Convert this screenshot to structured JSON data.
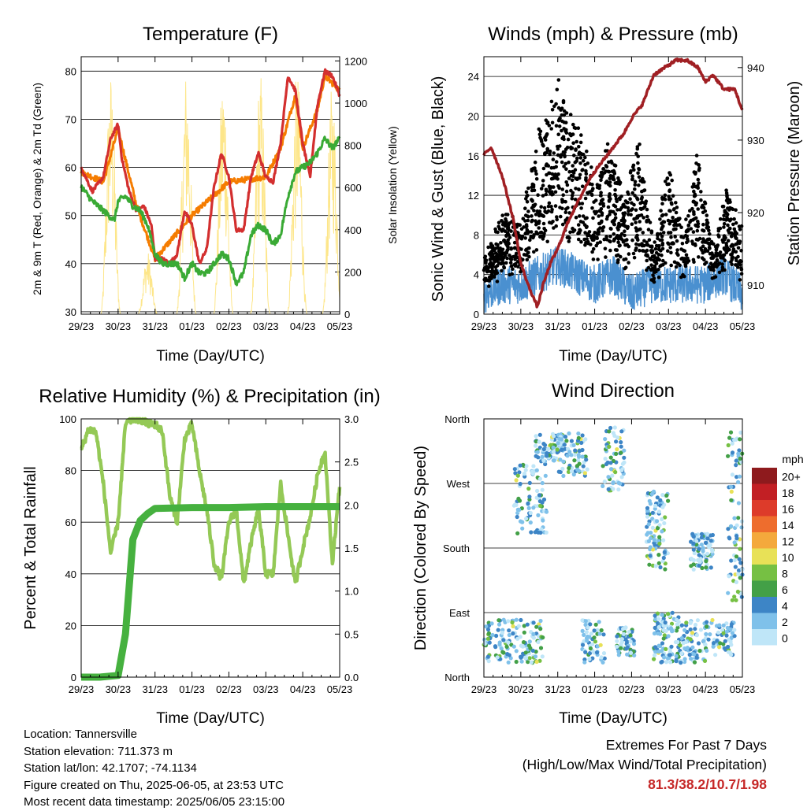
{
  "x_ticks": [
    "29/23",
    "30/23",
    "31/23",
    "01/23",
    "02/23",
    "03/23",
    "04/23",
    "05/23"
  ],
  "chart_data": [
    {
      "type": "line",
      "title": "Temperature (F)",
      "xlabel": "Time (Day/UTC)",
      "ylabel": "2m & 9m T (Red, Orange) & 2m Td (Green)",
      "ylabel_right": "Solar Insolation (Yellow)",
      "ylim": [
        29.5,
        83
      ],
      "yticks": [
        30,
        40,
        50,
        60,
        70,
        80
      ],
      "ylim_right": [
        0,
        1220
      ],
      "yticks_right": [
        0,
        200,
        400,
        600,
        800,
        1000,
        1200
      ],
      "grid": true,
      "series": [
        {
          "name": "2m T",
          "color": "#d32f2f",
          "x": [
            0,
            0.3,
            0.6,
            0.8,
            1.0,
            1.1,
            1.3,
            1.5,
            1.7,
            1.9,
            2.0,
            2.2,
            2.4,
            2.6,
            2.8,
            3.0,
            3.2,
            3.4,
            3.6,
            3.8,
            4.0,
            4.2,
            4.4,
            4.6,
            4.8,
            5.0,
            5.2,
            5.4,
            5.6,
            5.8,
            6.0,
            6.2,
            6.4,
            6.6,
            6.8,
            7.0
          ],
          "values": [
            60,
            55,
            58,
            66,
            69,
            62,
            55,
            51,
            52,
            48,
            41,
            41,
            40,
            42,
            51,
            48,
            40,
            43,
            56,
            63,
            58,
            47,
            47,
            58,
            63,
            58,
            57,
            65,
            79,
            76,
            65,
            58,
            73,
            80,
            79,
            75
          ]
        },
        {
          "name": "9m T",
          "color": "#f57c00",
          "x": [
            0,
            0.6,
            1.0,
            1.5,
            2.0,
            3.0,
            4.0,
            5.0,
            5.4,
            5.8,
            6.0,
            6.4,
            6.6,
            7.0
          ],
          "values": [
            59,
            57,
            68,
            52,
            41,
            50,
            57,
            58,
            64,
            75,
            64,
            72,
            79,
            76
          ]
        },
        {
          "name": "2m Td",
          "color": "#3aaa35",
          "x": [
            0,
            0.3,
            0.6,
            0.9,
            1.0,
            1.2,
            1.4,
            1.6,
            1.8,
            2.0,
            2.2,
            2.4,
            2.6,
            2.8,
            3.0,
            3.2,
            3.4,
            3.6,
            3.8,
            4.0,
            4.2,
            4.4,
            4.6,
            4.8,
            5.0,
            5.2,
            5.4,
            5.6,
            5.8,
            6.0,
            6.2,
            6.4,
            6.6,
            6.8,
            7.0
          ],
          "values": [
            56,
            53,
            51,
            49,
            53,
            54,
            52,
            51,
            48,
            42,
            40,
            40,
            40,
            37,
            40,
            38,
            38,
            40,
            42,
            41,
            36,
            38,
            46,
            48,
            47,
            44,
            46,
            54,
            59,
            60,
            61,
            63,
            66,
            64,
            66
          ]
        },
        {
          "name": "Solar Insolation",
          "color": "#fde68a",
          "axis": "right",
          "peaks": [
            {
              "x": 0.8,
              "v": 1160
            },
            {
              "x": 1.8,
              "v": 300
            },
            {
              "x": 2.85,
              "v": 1180
            },
            {
              "x": 3.85,
              "v": 1180
            },
            {
              "x": 4.85,
              "v": 1170
            },
            {
              "x": 5.85,
              "v": 1170
            },
            {
              "x": 6.8,
              "v": 1100
            }
          ]
        }
      ]
    },
    {
      "type": "scatter",
      "title": "Winds (mph) & Pressure (mb)",
      "xlabel": "Time (Day/UTC)",
      "ylabel": "Sonic Wind & Gust (Blue, Black)",
      "ylabel_right": "Station Pressure (Maroon)",
      "ylim": [
        0,
        26
      ],
      "yticks": [
        0,
        4,
        8,
        12,
        16,
        20,
        24
      ],
      "ylim_right": [
        906.0,
        941.5
      ],
      "yticks_right": [
        910,
        920,
        930,
        940
      ],
      "grid": true,
      "series": [
        {
          "name": "Sonic Wind",
          "color": "#4a90d0",
          "x": [
            0,
            0.5,
            1.0,
            1.5,
            2.0,
            2.5,
            3.0,
            3.5,
            4.0,
            4.5,
            5.0,
            5.5,
            6.0,
            6.5,
            7.0
          ],
          "values": [
            2,
            3,
            3,
            4,
            5,
            4,
            3,
            4,
            2,
            3,
            3,
            3,
            3,
            4,
            2
          ]
        },
        {
          "name": "Gust",
          "color": "#000000",
          "x": [
            0.2,
            0.6,
            1.0,
            1.5,
            2.0,
            2.3,
            2.7,
            3.0,
            3.4,
            3.8,
            4.2,
            4.6,
            5.0,
            5.4,
            5.8,
            6.2,
            6.6,
            6.9
          ],
          "values": [
            4,
            8,
            6,
            15,
            20,
            16,
            14,
            10,
            14,
            8,
            14,
            4,
            12,
            5,
            13,
            4,
            10,
            6
          ]
        },
        {
          "name": "Station Pressure",
          "color": "#a01f23",
          "axis": "right",
          "x": [
            0,
            0.2,
            0.5,
            0.8,
            1.0,
            1.2,
            1.45,
            1.6,
            1.8,
            2.0,
            2.3,
            2.6,
            2.9,
            3.2,
            3.5,
            3.8,
            4.0,
            4.3,
            4.6,
            4.9,
            5.2,
            5.5,
            5.8,
            6.0,
            6.2,
            6.5,
            6.8,
            7.0
          ],
          "values": [
            928,
            929,
            925,
            919,
            913,
            910,
            907,
            910,
            913,
            915,
            919,
            922,
            925,
            927,
            929,
            931,
            933,
            935,
            939,
            940,
            941,
            941,
            940,
            938,
            939,
            937,
            937,
            934
          ]
        }
      ]
    },
    {
      "type": "line",
      "title": "Relative Humidity (%) & Precipitation (in)",
      "xlabel": "Time (Day/UTC)",
      "ylabel": "Percent & Total Rainfall",
      "ylim": [
        0,
        100
      ],
      "yticks": [
        0,
        20,
        40,
        60,
        80,
        100
      ],
      "ylim_right": [
        0,
        3.0
      ],
      "yticks_right": [
        "0.0",
        "0.5",
        "1.0",
        "1.5",
        "2.0",
        "2.5",
        "3.0"
      ],
      "grid": true,
      "series": [
        {
          "name": "Relative Humidity",
          "color": "#94c956",
          "x": [
            0,
            0.2,
            0.4,
            0.6,
            0.8,
            1.0,
            1.2,
            1.4,
            1.6,
            1.8,
            2.0,
            2.2,
            2.4,
            2.6,
            2.8,
            3.0,
            3.2,
            3.4,
            3.6,
            3.8,
            4.0,
            4.2,
            4.4,
            4.6,
            4.8,
            5.0,
            5.2,
            5.4,
            5.6,
            5.8,
            6.0,
            6.2,
            6.4,
            6.6,
            6.8,
            7.0
          ],
          "values": [
            88,
            96,
            95,
            75,
            48,
            60,
            98,
            100,
            100,
            98,
            98,
            95,
            70,
            60,
            92,
            98,
            80,
            65,
            44,
            38,
            60,
            65,
            36,
            52,
            65,
            40,
            40,
            75,
            55,
            36,
            50,
            62,
            78,
            88,
            44,
            74
          ]
        },
        {
          "name": "Total Rainfall",
          "color": "#46b13f",
          "x": [
            0,
            0.5,
            1.0,
            1.2,
            1.4,
            1.6,
            1.8,
            2.0,
            3.0,
            4.0,
            5.0,
            6.0,
            7.0
          ],
          "values": [
            0,
            0,
            0.02,
            0.5,
            1.6,
            1.82,
            1.9,
            1.96,
            1.97,
            1.97,
            1.98,
            1.98,
            1.98
          ]
        }
      ]
    },
    {
      "type": "scatter",
      "title": "Wind Direction",
      "xlabel": "Time (Day/UTC)",
      "ylabel": "Direction (Colored By Speed)",
      "yticks": [
        "North",
        "East",
        "South",
        "West",
        "North"
      ],
      "grid": true,
      "legend": {
        "title": "mph",
        "labels": [
          "0",
          "2",
          "4",
          "6",
          "8",
          "10",
          "12",
          "14",
          "16",
          "18",
          "20+"
        ],
        "colors": [
          "#bfe6f8",
          "#7fc1ea",
          "#3d85c6",
          "#43a047",
          "#76c043",
          "#e8e157",
          "#f4a93c",
          "#ee6d2d",
          "#dd3b2a",
          "#c21f24",
          "#8e1a1d"
        ]
      },
      "clusters": [
        {
          "x": [
            0,
            0.9
          ],
          "dir": [
            20,
            80
          ]
        },
        {
          "x": [
            0.9,
            1.6
          ],
          "dir": [
            20,
            80
          ]
        },
        {
          "x": [
            0.8,
            1.7
          ],
          "dir": [
            200,
            300
          ]
        },
        {
          "x": [
            1.4,
            2.2
          ],
          "dir": [
            300,
            340
          ]
        },
        {
          "x": [
            2.0,
            2.8
          ],
          "dir": [
            280,
            340
          ]
        },
        {
          "x": [
            2.6,
            3.3
          ],
          "dir": [
            20,
            80
          ]
        },
        {
          "x": [
            3.2,
            3.8
          ],
          "dir": [
            260,
            350
          ]
        },
        {
          "x": [
            3.6,
            4.1
          ],
          "dir": [
            30,
            70
          ]
        },
        {
          "x": [
            4.4,
            5.0
          ],
          "dir": [
            150,
            260
          ]
        },
        {
          "x": [
            4.6,
            5.3
          ],
          "dir": [
            20,
            90
          ]
        },
        {
          "x": [
            5.2,
            6.0
          ],
          "dir": [
            20,
            80
          ]
        },
        {
          "x": [
            5.6,
            6.2
          ],
          "dir": [
            150,
            200
          ]
        },
        {
          "x": [
            6.0,
            6.8
          ],
          "dir": [
            30,
            80
          ]
        },
        {
          "x": [
            6.6,
            7.0
          ],
          "dir": [
            100,
            350
          ]
        }
      ]
    }
  ],
  "info": {
    "location": "Location: Tannersville",
    "elevation": "Station elevation: 711.373 m",
    "latlon": "Station lat/lon: 42.1707; -74.1134",
    "created": "Figure created on Thu, 2025-06-05, at 23:53 UTC",
    "timestamp": "Most recent data timestamp: 2025/06/05 23:15:00"
  },
  "extremes": {
    "title": "Extremes For Past 7 Days",
    "subtitle": "(High/Low/Max Wind/Total Precipitation)",
    "values": "81.3/38.2/10.7/1.98"
  }
}
